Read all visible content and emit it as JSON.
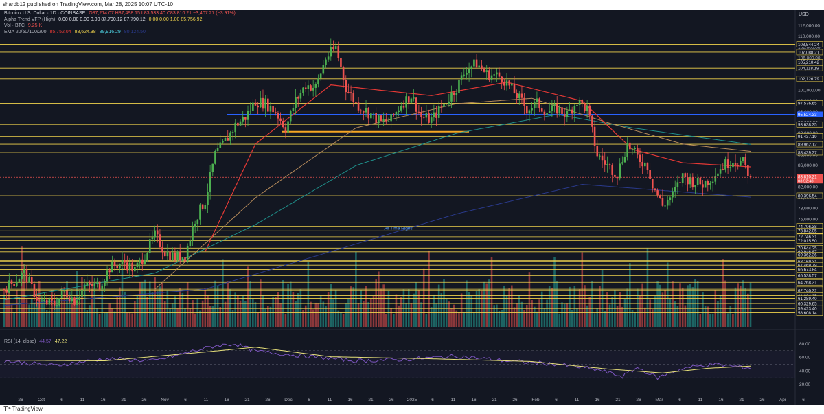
{
  "publish_line": "shardb12 published on TradingView.com, Mar 28, 2025 10:07 UTC-10",
  "legend": {
    "symbol": "Bitcoin / U.S. Dollar · 1D · COINBASE",
    "ohlc": "O87,214.07  H87,498.15  L83,533.40  C83,810.21  −3,407.27 (−3.91%)",
    "alpha_trend": {
      "label": "Alpha Trend VFP (High)",
      "values": "0.00  0.00  0.00  0.00  87,790.12  87,790.12",
      "extra": "0.00  0.00  1.00  85,756.92"
    },
    "vol": {
      "label": "Vol · BTC",
      "value": "9.25 K"
    },
    "ema": {
      "label": "EMA 20/50/100/200",
      "v1": "85,752.04",
      "v2": "88,624.38",
      "v3": "89,916.29",
      "v4": "80,124.50"
    }
  },
  "rsi_legend": {
    "label": "RSI (14, close)",
    "v1": "44.57",
    "v2": "47.22"
  },
  "currency": "USD",
  "annotation_ath": "All Time Highs",
  "footer_logo": "TradingView",
  "colors": {
    "bg": "#131722",
    "bull": "#26a69a",
    "bear": "#ef5350",
    "up_candle": "#4caf50",
    "level": "#f0d34c",
    "ema20": "#e53935",
    "ema50": "#b58a5a",
    "ema100": "#1f8f8a",
    "ema200": "#2a3a8c",
    "rsi": "#7e57c2",
    "rsi_ma": "#e8e17a",
    "blue_line": "#2962ff"
  },
  "chart_data": {
    "type": "candlestick",
    "symbol": "BTCUSD",
    "timeframe": "1D",
    "price_axis": {
      "ticks": [
        "112,000.00",
        "110,000.00",
        "108,000.00",
        "106,000.00",
        "104,000.00",
        "102,000.00",
        "100,000.00",
        "98,000.00",
        "96,000.00",
        "94,000.00",
        "92,000.00",
        "90,000.00",
        "88,000.00",
        "86,000.00",
        "84,000.00",
        "82,000.00",
        "80,000.00",
        "78,000.00",
        "76,000.00"
      ],
      "ylim": [
        56000,
        115000
      ]
    },
    "levels": [
      {
        "price": 108544.24,
        "label": "108,544.24"
      },
      {
        "price": 107088.21,
        "label": "107,088.21"
      },
      {
        "price": 105210.42,
        "label": "105,210.42"
      },
      {
        "price": 104118.19,
        "label": "104,118.19"
      },
      {
        "price": 102126.79,
        "label": "102,126.79"
      },
      {
        "price": 97576.65,
        "label": "97,576.65"
      },
      {
        "price": 93638.35,
        "label": "93,638.35"
      },
      {
        "price": 91437.19,
        "label": "91,437.19"
      },
      {
        "price": 89962.12,
        "label": "89,962.12"
      },
      {
        "price": 88439.27,
        "label": "88,439.27"
      },
      {
        "price": 80396.54,
        "label": "80,396.54"
      },
      {
        "price": 74706.38,
        "label": "74,706.38"
      },
      {
        "price": 73842.05,
        "label": "73,842.05"
      },
      {
        "price": 72746.31,
        "label": "72,746.31"
      },
      {
        "price": 72015.5,
        "label": "72,015.50"
      },
      {
        "price": 70644.25,
        "label": "70,644.25"
      },
      {
        "price": 69946.87,
        "label": "69,946.87"
      },
      {
        "price": 69362.36,
        "label": "69,362.36"
      },
      {
        "price": 68341.91,
        "label": "68,341.91"
      },
      {
        "price": 68169.31,
        "label": "68,169.31"
      },
      {
        "price": 67469.79,
        "label": "67,469.79"
      },
      {
        "price": 66673.84,
        "label": "66,673.84"
      },
      {
        "price": 65538.57,
        "label": "65,538.57"
      },
      {
        "price": 64268.31,
        "label": "64,268.31"
      },
      {
        "price": 63003.98,
        "label": "63,003.98"
      },
      {
        "price": 62740.32,
        "label": "62,740.32"
      },
      {
        "price": 61804.35,
        "label": "61,804.35"
      },
      {
        "price": 61289.4,
        "label": "61,289.40"
      },
      {
        "price": 60329.65,
        "label": "60,329.65"
      },
      {
        "price": 59423.4,
        "label": "59,423.40"
      },
      {
        "price": 58608.14,
        "label": "58,608.14"
      }
    ],
    "blue_level": {
      "price": 95524.33,
      "label": "95,524.33"
    },
    "last_price": {
      "label": "83,810.21",
      "countdown": "03:52:48"
    },
    "rsi_axis": {
      "ticks": [
        "80.00",
        "60.00",
        "40.00",
        "20.00"
      ],
      "ylim": [
        10,
        95
      ]
    },
    "x_axis_labels": [
      "26",
      "Oct",
      "6",
      "11",
      "16",
      "21",
      "26",
      "Nov",
      "6",
      "11",
      "16",
      "21",
      "26",
      "Dec",
      "6",
      "11",
      "16",
      "21",
      "26",
      "2025",
      "6",
      "11",
      "16",
      "21",
      "26",
      "Feb",
      "6",
      "11",
      "16",
      "21",
      "26",
      "Mar",
      "6",
      "11",
      "16",
      "21",
      "26",
      "Apr",
      "6"
    ],
    "close_path": [
      [
        0,
        63000
      ],
      [
        8,
        66000
      ],
      [
        14,
        60500
      ],
      [
        20,
        60300
      ],
      [
        24,
        62500
      ],
      [
        28,
        61000
      ],
      [
        32,
        63500
      ],
      [
        38,
        63800
      ],
      [
        42,
        67000
      ],
      [
        48,
        68000
      ],
      [
        52,
        66500
      ],
      [
        56,
        69500
      ],
      [
        60,
        73000
      ],
      [
        64,
        70000
      ],
      [
        68,
        69000
      ],
      [
        72,
        69200
      ],
      [
        76,
        76000
      ],
      [
        80,
        79500
      ],
      [
        84,
        88000
      ],
      [
        88,
        90500
      ],
      [
        92,
        93500
      ],
      [
        96,
        95000
      ],
      [
        100,
        98000
      ],
      [
        104,
        97500
      ],
      [
        108,
        96000
      ],
      [
        112,
        93000
      ],
      [
        116,
        98000
      ],
      [
        120,
        101000
      ],
      [
        124,
        100500
      ],
      [
        128,
        106000
      ],
      [
        132,
        108000
      ],
      [
        136,
        100500
      ],
      [
        140,
        97500
      ],
      [
        146,
        95500
      ],
      [
        150,
        94000
      ],
      [
        154,
        94500
      ],
      [
        158,
        97500
      ],
      [
        162,
        99000
      ],
      [
        166,
        95000
      ],
      [
        170,
        94500
      ],
      [
        176,
        98000
      ],
      [
        180,
        100500
      ],
      [
        184,
        104000
      ],
      [
        188,
        105000
      ],
      [
        192,
        103000
      ],
      [
        198,
        102500
      ],
      [
        204,
        99000
      ],
      [
        208,
        96500
      ],
      [
        212,
        97500
      ],
      [
        216,
        96000
      ],
      [
        220,
        96500
      ],
      [
        224,
        95500
      ],
      [
        228,
        98000
      ],
      [
        232,
        96500
      ],
      [
        236,
        88000
      ],
      [
        240,
        86000
      ],
      [
        244,
        84500
      ],
      [
        248,
        90000
      ],
      [
        252,
        87500
      ],
      [
        256,
        86000
      ],
      [
        258,
        82500
      ],
      [
        262,
        78500
      ],
      [
        266,
        80500
      ],
      [
        270,
        84000
      ],
      [
        274,
        83000
      ],
      [
        278,
        82500
      ],
      [
        282,
        84000
      ],
      [
        286,
        86000
      ],
      [
        290,
        87000
      ],
      [
        294,
        86500
      ],
      [
        297,
        83810
      ]
    ],
    "last_bar_index": 297,
    "ema20": [
      [
        80,
        70000
      ],
      [
        100,
        90000
      ],
      [
        130,
        101000
      ],
      [
        170,
        99000
      ],
      [
        200,
        101500
      ],
      [
        230,
        98000
      ],
      [
        250,
        89000
      ],
      [
        270,
        86500
      ],
      [
        297,
        85752
      ]
    ],
    "ema50": [
      [
        60,
        63000
      ],
      [
        100,
        80000
      ],
      [
        140,
        93000
      ],
      [
        180,
        97500
      ],
      [
        210,
        98500
      ],
      [
        240,
        94000
      ],
      [
        270,
        90000
      ],
      [
        297,
        88624
      ]
    ],
    "ema100": [
      [
        0,
        61000
      ],
      [
        60,
        66000
      ],
      [
        100,
        75000
      ],
      [
        140,
        86000
      ],
      [
        180,
        92000
      ],
      [
        220,
        95500
      ],
      [
        250,
        93000
      ],
      [
        297,
        89916
      ]
    ],
    "ema200": [
      [
        0,
        60000
      ],
      [
        80,
        63000
      ],
      [
        130,
        70000
      ],
      [
        180,
        77000
      ],
      [
        230,
        82500
      ],
      [
        297,
        80124
      ]
    ],
    "rsi": [
      [
        0,
        55
      ],
      [
        20,
        48
      ],
      [
        40,
        58
      ],
      [
        60,
        55
      ],
      [
        76,
        70
      ],
      [
        84,
        77
      ],
      [
        92,
        80
      ],
      [
        100,
        69
      ],
      [
        120,
        62
      ],
      [
        140,
        55
      ],
      [
        160,
        57
      ],
      [
        180,
        62
      ],
      [
        200,
        55
      ],
      [
        220,
        50
      ],
      [
        236,
        42
      ],
      [
        246,
        32
      ],
      [
        252,
        45
      ],
      [
        260,
        30
      ],
      [
        270,
        44
      ],
      [
        282,
        50
      ],
      [
        297,
        44.57
      ]
    ],
    "rsi_ma": [
      [
        0,
        56
      ],
      [
        40,
        55
      ],
      [
        80,
        68
      ],
      [
        100,
        75
      ],
      [
        130,
        61
      ],
      [
        170,
        58
      ],
      [
        210,
        54
      ],
      [
        240,
        43
      ],
      [
        262,
        37
      ],
      [
        280,
        44
      ],
      [
        297,
        47.22
      ]
    ]
  }
}
